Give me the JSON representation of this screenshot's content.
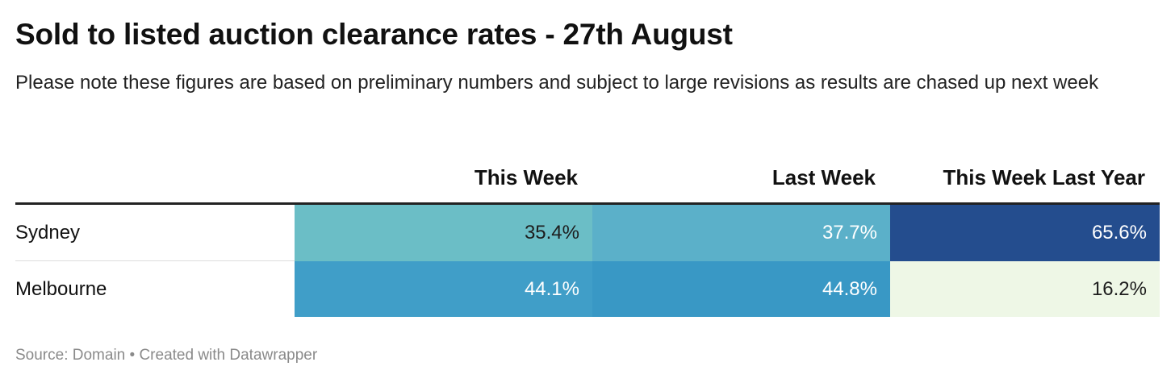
{
  "title": "Sold to listed auction clearance rates - 27th August",
  "subtitle": "Please note these figures are based on preliminary numbers and subject to large revisions as results are chased up next week",
  "footer": {
    "source": "Source: Domain",
    "separator": " • ",
    "credit": "Created with Datawrapper"
  },
  "chart_data": {
    "type": "table",
    "columns": [
      "",
      "This Week",
      "Last Week",
      "This Week Last Year"
    ],
    "rows": [
      {
        "label": "Sydney",
        "cells": [
          {
            "text": "35.4%",
            "value": 35.4,
            "bg": "#6bbec6",
            "fg": "#1d1d1d"
          },
          {
            "text": "37.7%",
            "value": 37.7,
            "bg": "#5bb0c9",
            "fg": "#ffffff"
          },
          {
            "text": "65.6%",
            "value": 65.6,
            "bg": "#244d8e",
            "fg": "#ffffff"
          }
        ]
      },
      {
        "label": "Melbourne",
        "cells": [
          {
            "text": "44.1%",
            "value": 44.1,
            "bg": "#409ec8",
            "fg": "#ffffff"
          },
          {
            "text": "44.8%",
            "value": 44.8,
            "bg": "#3998c5",
            "fg": "#ffffff"
          },
          {
            "text": "16.2%",
            "value": 16.2,
            "bg": "#eef7e6",
            "fg": "#1d1d1d"
          }
        ]
      }
    ]
  }
}
